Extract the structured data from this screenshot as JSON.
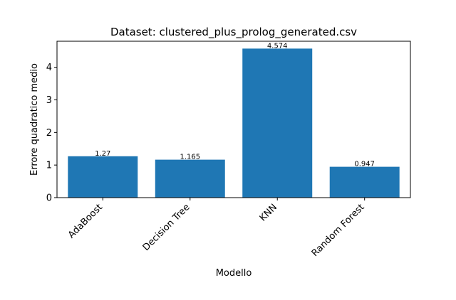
{
  "chart_data": {
    "type": "bar",
    "title": "Dataset: clustered_plus_prolog_generated.csv",
    "xlabel": "Modello",
    "ylabel": "Errore quadratico medio",
    "categories": [
      "AdaBoost",
      "Decision Tree",
      "KNN",
      "Random Forest"
    ],
    "values": [
      1.27,
      1.165,
      4.574,
      0.947
    ],
    "data_labels": [
      "1.27",
      "1.165",
      "4.574",
      "0.947"
    ],
    "ylim": [
      0,
      4.8
    ],
    "yticks": [
      0,
      1,
      2,
      3,
      4
    ],
    "grid": false,
    "bar_color": "#1f77b4"
  }
}
